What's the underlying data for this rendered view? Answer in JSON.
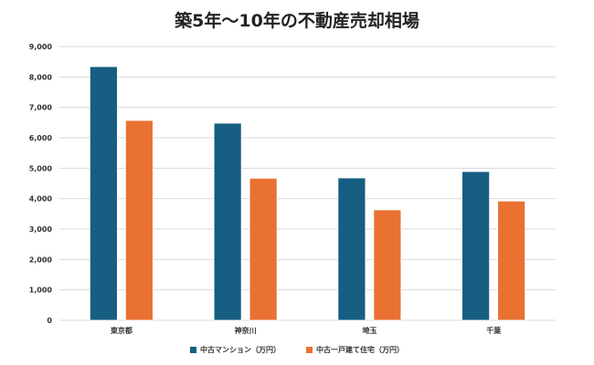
{
  "chart_data": {
    "type": "bar",
    "title": "築5年〜10年の不動産売却相場",
    "categories": [
      "東京都",
      "神奈川",
      "埼玉",
      "千葉"
    ],
    "series": [
      {
        "name": "中古マンション（万円）",
        "color": "#165e82",
        "values": [
          8340,
          6480,
          4680,
          4890
        ]
      },
      {
        "name": "中古一戸建て住宅（万円）",
        "color": "#e97132",
        "values": [
          6570,
          4670,
          3630,
          3920
        ]
      }
    ],
    "ylim": [
      0,
      9000
    ],
    "yticks": [
      "0",
      "1,000",
      "2,000",
      "3,000",
      "4,000",
      "5,000",
      "6,000",
      "7,000",
      "8,000",
      "9,000"
    ],
    "xlabel": "",
    "ylabel": "",
    "grid": true,
    "legend": "bottom"
  }
}
